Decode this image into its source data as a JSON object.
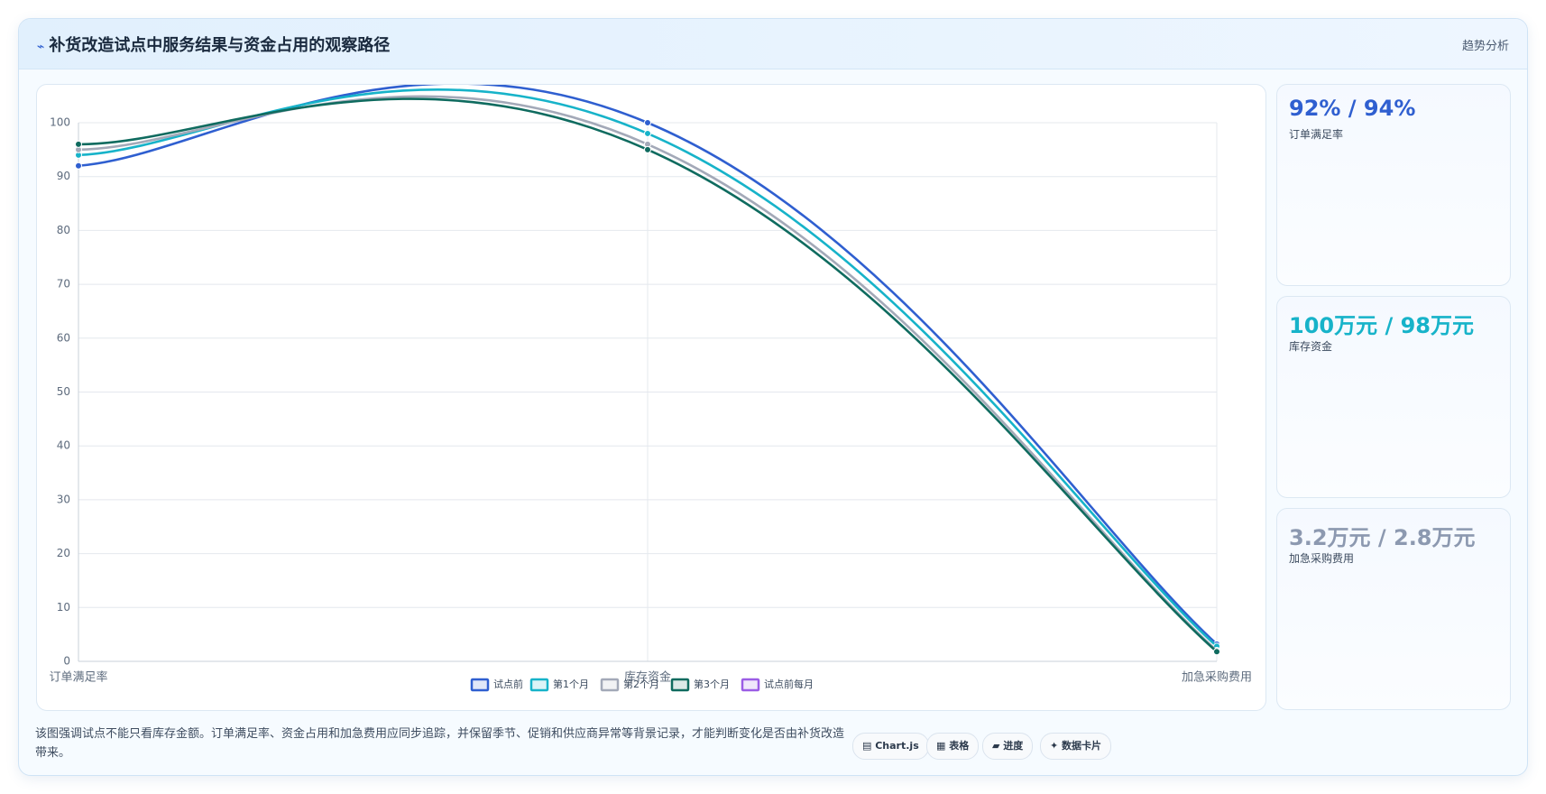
{
  "header": {
    "title": "补货改造试点中服务结果与资金占用的观察路径",
    "tag": "趋势分析"
  },
  "chart_data": {
    "type": "line",
    "categories": [
      "订单满足率",
      "库存资金",
      "加急采购费用"
    ],
    "series": [
      {
        "name": "试点前",
        "color": "#2f5fd0",
        "values": [
          92,
          100,
          3.2
        ]
      },
      {
        "name": "第1个月",
        "color": "#17b3c9",
        "values": [
          94,
          98,
          2.8
        ]
      },
      {
        "name": "第2个月",
        "color": "#a3a9b8",
        "values": [
          95,
          96,
          2
        ]
      },
      {
        "name": "第3个月",
        "color": "#0f6b5f",
        "values": [
          96,
          95,
          1.8
        ]
      },
      {
        "name": "试点前每月",
        "color": "#9b5de5",
        "values": [
          null,
          null,
          null
        ]
      }
    ],
    "ylim": [
      0,
      100
    ],
    "yticks": [
      0,
      10,
      20,
      30,
      40,
      50,
      60,
      70,
      80,
      90,
      100
    ],
    "grid": true
  },
  "cards": [
    {
      "value": "92% / 94%",
      "label": "订单满足率",
      "color": "#2f5fd0"
    },
    {
      "value": "100万元 / 98万元",
      "label": "库存资金",
      "color": "#17b3c9"
    },
    {
      "value": "3.2万元 / 2.8万元",
      "label": "加急采购费用",
      "color": "#8c99b0"
    }
  ],
  "note": "该图强调试点不能只看库存金额。订单满足率、资金占用和加急费用应同步追踪，并保留季节、促销和供应商异常等背景记录，才能判断变化是否由补货改造带来。",
  "buttons": [
    "Chart.js",
    "表格",
    "进度",
    "数据卡片"
  ]
}
